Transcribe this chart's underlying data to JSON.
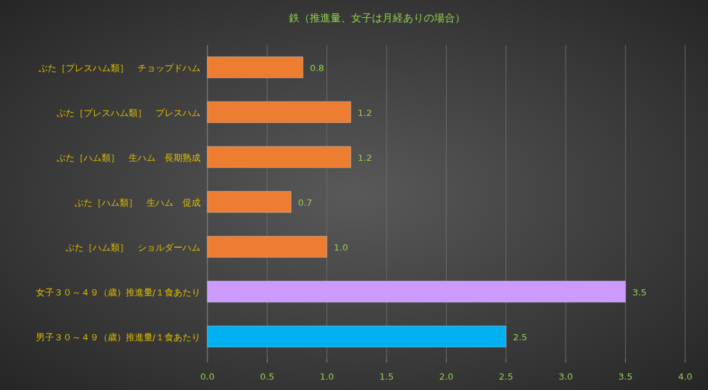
{
  "chart_data": {
    "type": "bar",
    "orientation": "horizontal",
    "title": "鉄（推進量、女子は月経ありの場合）",
    "categories": [
      "ぶた［プレスハム類］　チョップドハム",
      "ぶた［プレスハム類］　プレスハム",
      "ぶた［ハム類］　生ハム　長期熟成",
      "ぶた［ハム類］　生ハム　促成",
      "ぶた［ハム類］　ショルダーハム",
      "女子３０～４９（歳）推進量/１食あたり",
      "男子３０～４９（歳）推進量/１食あたり"
    ],
    "values": [
      0.8,
      1.2,
      1.2,
      0.7,
      1.0,
      3.5,
      2.5
    ],
    "colors": [
      "#ed7d31",
      "#ed7d31",
      "#ed7d31",
      "#ed7d31",
      "#ed7d31",
      "#cc99ff",
      "#00b0f0"
    ],
    "value_labels": [
      "0.8",
      "1.2",
      "1.2",
      "0.7",
      "1.0",
      "3.5",
      "2.5"
    ],
    "xlim": [
      0,
      4
    ],
    "xticks": [
      {
        "value": 0,
        "label": "0.0"
      },
      {
        "value": 0.5,
        "label": "0.5"
      },
      {
        "value": 1,
        "label": "1.0"
      },
      {
        "value": 1.5,
        "label": "1.5"
      },
      {
        "value": 2,
        "label": "2.0"
      },
      {
        "value": 2.5,
        "label": "2.5"
      },
      {
        "value": 3,
        "label": "3.0"
      },
      {
        "value": 3.5,
        "label": "3.5"
      },
      {
        "value": 4,
        "label": "4.0"
      }
    ],
    "grid": "x"
  }
}
